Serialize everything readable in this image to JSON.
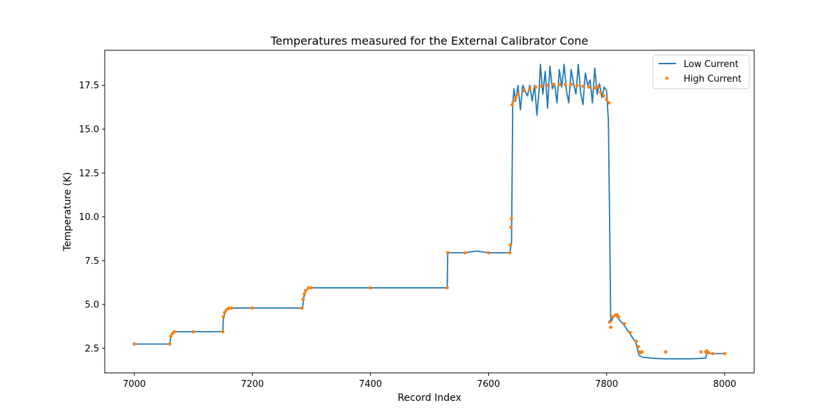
{
  "chart_data": {
    "type": "line",
    "title": "Temperatures measured for the External Calibrator Cone",
    "xlabel": "Record Index",
    "ylabel": "Temperature (K)",
    "xlim": [
      6950,
      8050
    ],
    "ylim": [
      1.1,
      19.5
    ],
    "xticks": [
      7000,
      7200,
      7400,
      7600,
      7800,
      8000
    ],
    "yticks": [
      2.5,
      5.0,
      7.5,
      10.0,
      12.5,
      15.0,
      17.5
    ],
    "ytick_labels": [
      "2.5",
      "5.0",
      "7.5",
      "10.0",
      "12.5",
      "15.0",
      "17.5"
    ],
    "legend_position": "top-right",
    "colors": {
      "low": "#1f77b4",
      "high": "#ff7f0e"
    },
    "series": [
      {
        "name": "Low Current",
        "style": "line",
        "x": [
          7000,
          7060,
          7062,
          7066,
          7100,
          7150,
          7151,
          7155,
          7160,
          7170,
          7200,
          7285,
          7287,
          7292,
          7300,
          7400,
          7530,
          7531,
          7560,
          7580,
          7600,
          7636,
          7639,
          7641,
          7643,
          7646,
          7650,
          7654,
          7658,
          7662,
          7666,
          7670,
          7674,
          7678,
          7682,
          7686,
          7688,
          7692,
          7696,
          7700,
          7704,
          7708,
          7712,
          7716,
          7720,
          7724,
          7728,
          7732,
          7736,
          7740,
          7744,
          7748,
          7752,
          7756,
          7760,
          7764,
          7768,
          7772,
          7776,
          7780,
          7784,
          7788,
          7792,
          7796,
          7800,
          7803,
          7805,
          7807,
          7810,
          7815,
          7820,
          7830,
          7840,
          7850,
          7855,
          7860,
          7880,
          7900,
          7920,
          7940,
          7960,
          7968,
          7970,
          7975,
          7980,
          8000
        ],
        "y": [
          2.75,
          2.75,
          3.2,
          3.45,
          3.45,
          3.45,
          4.3,
          4.6,
          4.75,
          4.8,
          4.8,
          4.8,
          5.4,
          5.85,
          5.95,
          5.95,
          5.95,
          7.95,
          7.95,
          8.05,
          7.95,
          7.95,
          8.5,
          16.3,
          17.3,
          16.6,
          17.5,
          16.1,
          17.5,
          17.2,
          16.9,
          17.5,
          16.6,
          17.5,
          15.8,
          17.4,
          18.7,
          17.0,
          18.3,
          16.2,
          18.6,
          17.3,
          17.6,
          16.5,
          18.4,
          17.4,
          18.7,
          17.2,
          16.5,
          18.4,
          17.6,
          17.0,
          18.7,
          17.1,
          16.4,
          18.2,
          17.5,
          17.8,
          16.5,
          18.5,
          17.0,
          17.6,
          16.8,
          17.4,
          17.2,
          15.5,
          10.0,
          4.0,
          4.2,
          4.4,
          4.2,
          3.8,
          3.3,
          2.8,
          2.1,
          2.0,
          1.93,
          1.9,
          1.9,
          1.9,
          1.93,
          1.95,
          2.3,
          2.2,
          2.2,
          2.2
        ]
      },
      {
        "name": "High Current",
        "style": "scatter",
        "x": [
          7000,
          7060,
          7062,
          7065,
          7068,
          7100,
          7150,
          7151,
          7153,
          7156,
          7160,
          7165,
          7200,
          7284,
          7286,
          7288,
          7290,
          7295,
          7300,
          7400,
          7530,
          7531,
          7560,
          7600,
          7636,
          7637,
          7638,
          7639,
          7640,
          7642,
          7646,
          7650,
          7660,
          7670,
          7680,
          7690,
          7700,
          7710,
          7720,
          7730,
          7740,
          7750,
          7760,
          7770,
          7780,
          7785,
          7790,
          7795,
          7800,
          7804,
          7805,
          7807,
          7810,
          7815,
          7818,
          7820,
          7830,
          7840,
          7850,
          7854,
          7856,
          7858,
          7860,
          7900,
          7960,
          7968,
          7970,
          7973,
          7980,
          8000
        ],
        "y": [
          2.75,
          2.75,
          3.2,
          3.35,
          3.45,
          3.45,
          3.45,
          4.3,
          4.55,
          4.7,
          4.78,
          4.8,
          4.8,
          4.8,
          5.3,
          5.6,
          5.8,
          5.95,
          5.95,
          5.95,
          5.95,
          7.95,
          7.95,
          7.95,
          7.95,
          8.4,
          9.4,
          9.9,
          16.4,
          16.6,
          16.8,
          17.0,
          17.2,
          17.3,
          17.4,
          17.45,
          17.5,
          17.55,
          17.55,
          17.55,
          17.55,
          17.5,
          17.45,
          17.4,
          17.35,
          17.4,
          17.1,
          16.9,
          16.7,
          16.5,
          4.0,
          3.7,
          4.3,
          4.4,
          4.4,
          4.3,
          3.9,
          3.4,
          2.9,
          2.6,
          2.3,
          2.25,
          2.3,
          2.3,
          2.3,
          2.3,
          2.35,
          2.25,
          2.2,
          2.2
        ]
      }
    ]
  }
}
